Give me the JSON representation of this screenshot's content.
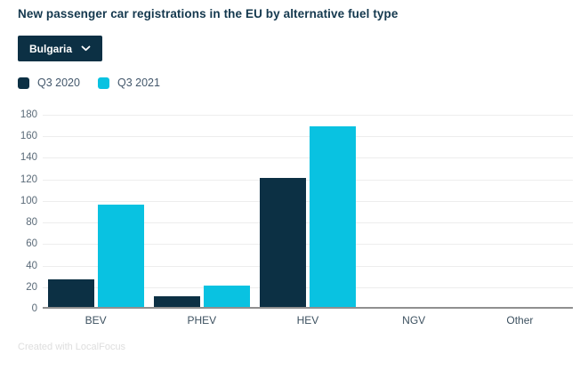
{
  "title": "New passenger car registrations in the EU by alternative fuel type",
  "dropdown": {
    "selected": "Bulgaria"
  },
  "legend": [
    {
      "label": "Q3 2020",
      "color": "#0c3044"
    },
    {
      "label": "Q3 2021",
      "color": "#09c2e1"
    }
  ],
  "footer": "Created with LocalFocus",
  "colors": {
    "accent_dark": "#0c3044",
    "accent_cyan": "#09c2e1",
    "title_text": "#14384e",
    "axis_text": "#5a6a78",
    "category_text": "#3d5160",
    "gridline": "#ededed",
    "axis_line": "#8f8f8f",
    "footer_text": "#dedede"
  },
  "chart_data": {
    "type": "bar",
    "title": "New passenger car registrations in the EU by alternative fuel type",
    "categories": [
      "BEV",
      "PHEV",
      "HEV",
      "NGV",
      "Other"
    ],
    "series": [
      {
        "name": "Q3 2020",
        "color": "#0c3044",
        "values": [
          26,
          10,
          120,
          0,
          0
        ]
      },
      {
        "name": "Q3 2021",
        "color": "#09c2e1",
        "values": [
          95,
          20,
          168,
          0,
          0
        ]
      }
    ],
    "xlabel": "",
    "ylabel": "",
    "ylim": [
      0,
      180
    ],
    "yticks": [
      0,
      20,
      40,
      60,
      80,
      100,
      120,
      140,
      160,
      180
    ],
    "grid": true,
    "legend_position": "top-left"
  }
}
